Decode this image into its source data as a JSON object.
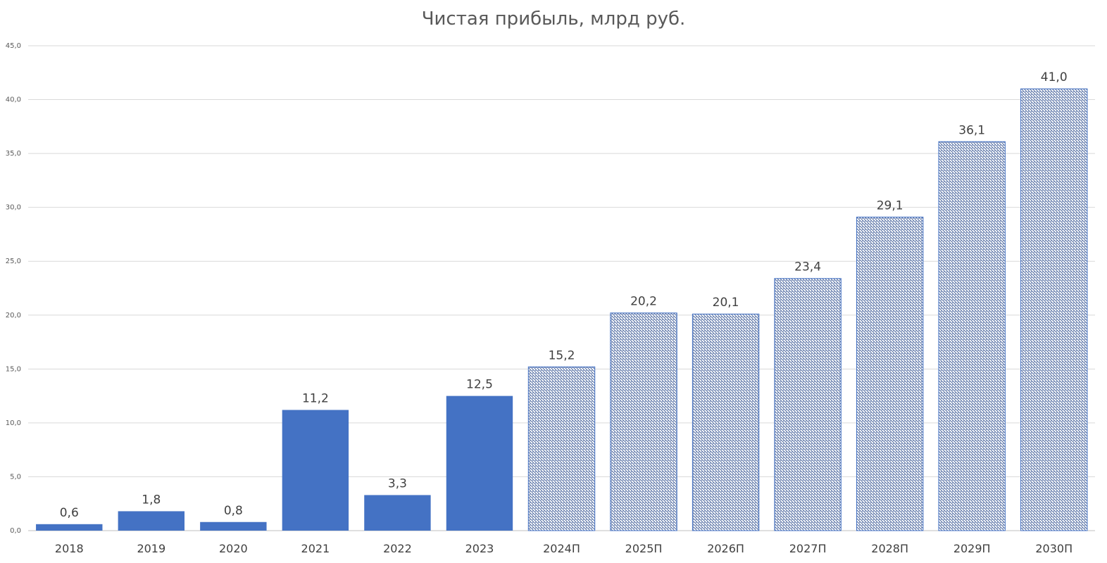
{
  "chart_data": {
    "type": "bar",
    "title": "Чистая прибыль, млрд руб.",
    "xlabel": "",
    "ylabel": "",
    "ylim": [
      0,
      45
    ],
    "yticks": [
      "0,0",
      "5,0",
      "10,0",
      "15,0",
      "20,0",
      "25,0",
      "30,0",
      "35,0",
      "40,0",
      "45,0"
    ],
    "grid": true,
    "categories": [
      "2018",
      "2019",
      "2020",
      "2021",
      "2022",
      "2023",
      "2024П",
      "2025П",
      "2026П",
      "2027П",
      "2028П",
      "2029П",
      "2030П"
    ],
    "values": [
      0.6,
      1.8,
      0.8,
      11.2,
      3.3,
      12.5,
      15.2,
      20.2,
      20.1,
      23.4,
      29.1,
      36.1,
      41.0
    ],
    "data_labels": [
      "0,6",
      "1,8",
      "0,8",
      "11,2",
      "3,3",
      "12,5",
      "15,2",
      "20,2",
      "20,1",
      "23,4",
      "29,1",
      "36,1",
      "41,0"
    ],
    "forecast_from_index": 6,
    "colors": {
      "actual": "#4472C4",
      "forecast_stroke": "#4472C4",
      "grid": "#d9d9d9"
    }
  }
}
